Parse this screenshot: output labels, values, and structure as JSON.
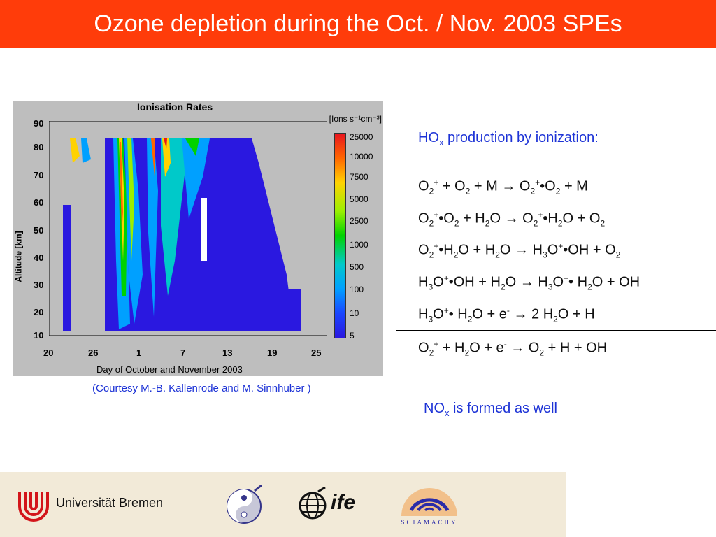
{
  "slide": {
    "title": "Ozone depletion during the Oct. / Nov. 2003 SPEs"
  },
  "figure": {
    "title": "Ionisation Rates",
    "units": "[Ions s⁻¹cm⁻³]",
    "ylabel": "Altitude [km]",
    "xlabel": "Day of October and November 2003",
    "yticks": [
      "90",
      "80",
      "70",
      "60",
      "50",
      "40",
      "30",
      "20",
      "10"
    ],
    "xticks": [
      "20",
      "26",
      "1",
      "7",
      "13",
      "19",
      "25"
    ],
    "colorbar_labels": [
      "25000",
      "10000",
      "7500",
      "5000",
      "2500",
      "1000",
      "500",
      "100",
      "10",
      "5"
    ],
    "courtesy": "(Courtesy M.-B. Kallenrode and M. Sinnhuber )"
  },
  "hox": {
    "prefix": "HO",
    "sub": "x",
    "suffix": " production by ionization:"
  },
  "reactions": [
    {
      "a": "O",
      "b": "2",
      "c": "+",
      "d": " + O",
      "e": "2",
      "f": " + M → O",
      "g": "2",
      "h": "+",
      "i": "•O",
      "j": "2",
      "k": " + M"
    },
    {
      "text": "O2+•O2 + H2O → O2+•H2O + O2"
    },
    {
      "text": "O2+•H2O + H2O → H3O+•OH + O2"
    },
    {
      "text": "H3O+•OH + H2O → H3O+• H2O + OH"
    },
    {
      "text": "H3O+• H2O + e- → 2 H2O + H"
    },
    {
      "text": "O2+ + H2O + e- → O2 + H + OH"
    }
  ],
  "nox": {
    "prefix": "NO",
    "sub": "x",
    "suffix": " is formed as well"
  },
  "footer": {
    "university": "Universität Bremen",
    "ife": "ife",
    "sciamachy": "SCIAMACHY"
  }
}
